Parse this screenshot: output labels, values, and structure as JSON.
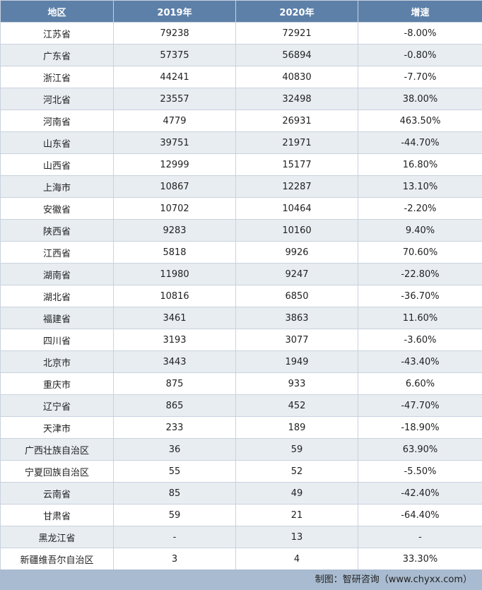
{
  "table": {
    "header": [
      "地区",
      "2019年",
      "2020年",
      "增速"
    ],
    "rows": [
      [
        "江苏省",
        "79238",
        "72921",
        "-8.00%"
      ],
      [
        "广东省",
        "57375",
        "56894",
        "-0.80%"
      ],
      [
        "浙江省",
        "44241",
        "40830",
        "-7.70%"
      ],
      [
        "河北省",
        "23557",
        "32498",
        "38.00%"
      ],
      [
        "河南省",
        "4779",
        "26931",
        "463.50%"
      ],
      [
        "山东省",
        "39751",
        "21971",
        "-44.70%"
      ],
      [
        "山西省",
        "12999",
        "15177",
        "16.80%"
      ],
      [
        "上海市",
        "10867",
        "12287",
        "13.10%"
      ],
      [
        "安徽省",
        "10702",
        "10464",
        "-2.20%"
      ],
      [
        "陕西省",
        "9283",
        "10160",
        "9.40%"
      ],
      [
        "江西省",
        "5818",
        "9926",
        "70.60%"
      ],
      [
        "湖南省",
        "11980",
        "9247",
        "-22.80%"
      ],
      [
        "湖北省",
        "10816",
        "6850",
        "-36.70%"
      ],
      [
        "福建省",
        "3461",
        "3863",
        "11.60%"
      ],
      [
        "四川省",
        "3193",
        "3077",
        "-3.60%"
      ],
      [
        "北京市",
        "3443",
        "1949",
        "-43.40%"
      ],
      [
        "重庆市",
        "875",
        "933",
        "6.60%"
      ],
      [
        "辽宁省",
        "865",
        "452",
        "-47.70%"
      ],
      [
        "天津市",
        "233",
        "189",
        "-18.90%"
      ],
      [
        "广西壮族自治区",
        "36",
        "59",
        "63.90%"
      ],
      [
        "宁夏回族自治区",
        "55",
        "52",
        "-5.50%"
      ],
      [
        "云南省",
        "85",
        "49",
        "-42.40%"
      ],
      [
        "甘肃省",
        "59",
        "21",
        "-64.40%"
      ],
      [
        "黑龙江省",
        "-",
        "13",
        "-"
      ],
      [
        "新疆维吾尔自治区",
        "3",
        "4",
        "33.30%"
      ]
    ]
  },
  "footer": "制图：智研咨询（www.chyxx.com）"
}
